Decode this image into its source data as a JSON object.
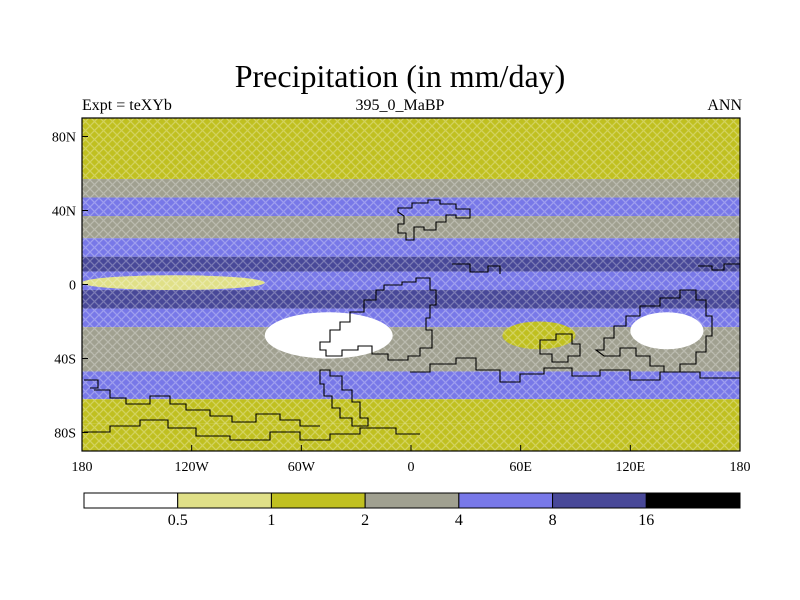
{
  "header": {
    "title": "Precipitation (in mm/day)",
    "left_label": "Expt = teXYb",
    "center_label": "395_0_MaBP",
    "right_label": "ANN"
  },
  "chart_data": {
    "type": "heatmap",
    "title": "Precipitation (in mm/day)",
    "xlabel": "",
    "ylabel": "",
    "x_ticks": [
      "180",
      "120W",
      "60W",
      "0",
      "60E",
      "120E",
      "180"
    ],
    "x_tick_values": [
      -180,
      -120,
      -60,
      0,
      60,
      120,
      180
    ],
    "y_ticks": [
      "80N",
      "40N",
      "0",
      "40S",
      "80S"
    ],
    "y_tick_values": [
      80,
      40,
      0,
      -40,
      -80
    ],
    "xlim": [
      -180,
      180
    ],
    "ylim": [
      -90,
      90
    ],
    "colorbar": {
      "levels": [
        "0.5",
        "1",
        "2",
        "4",
        "8",
        "16"
      ],
      "level_values": [
        0.5,
        1,
        2,
        4,
        8,
        16
      ],
      "colors": [
        "#ffffff",
        "#e0e088",
        "#c0c020",
        "#a0a090",
        "#7878e8",
        "#484898",
        "#000000"
      ]
    },
    "zonal_bands": [
      {
        "lat": [
          70,
          90
        ],
        "value": 1.5
      },
      {
        "lat": [
          57,
          70
        ],
        "value": 1.5
      },
      {
        "lat": [
          47,
          57
        ],
        "value": 3.0
      },
      {
        "lat": [
          37,
          47
        ],
        "value": 5.0
      },
      {
        "lat": [
          25,
          37
        ],
        "value": 2.5
      },
      {
        "lat": [
          15,
          25
        ],
        "value": 4.5
      },
      {
        "lat": [
          7,
          15
        ],
        "value": 10.0
      },
      {
        "lat": [
          -3,
          7
        ],
        "value": 5.0
      },
      {
        "lat": [
          -13,
          -3
        ],
        "value": 10.0
      },
      {
        "lat": [
          -23,
          -13
        ],
        "value": 5.0
      },
      {
        "lat": [
          -37,
          -23
        ],
        "value": 3.0
      },
      {
        "lat": [
          -47,
          -37
        ],
        "value": 3.5
      },
      {
        "lat": [
          -62,
          -47
        ],
        "value": 5.0
      },
      {
        "lat": [
          -75,
          -62
        ],
        "value": 1.5
      },
      {
        "lat": [
          -90,
          -75
        ],
        "value": 1.2
      }
    ],
    "features": [
      {
        "region": "dry core near 40W 25S",
        "lon": [
          -80,
          -10
        ],
        "lat": [
          -40,
          -15
        ],
        "value": 0.3
      },
      {
        "region": "dry zone near 140E 25S",
        "lon": [
          120,
          160
        ],
        "lat": [
          -35,
          -15
        ],
        "value": 0.4
      },
      {
        "region": "dry zone near 65E 30S",
        "lon": [
          50,
          90
        ],
        "lat": [
          -35,
          -20
        ],
        "value": 1.2
      },
      {
        "region": "dry tongue 150W-90W near 0",
        "lon": [
          -180,
          -80
        ],
        "lat": [
          -3,
          5
        ],
        "value": 0.8
      }
    ]
  }
}
